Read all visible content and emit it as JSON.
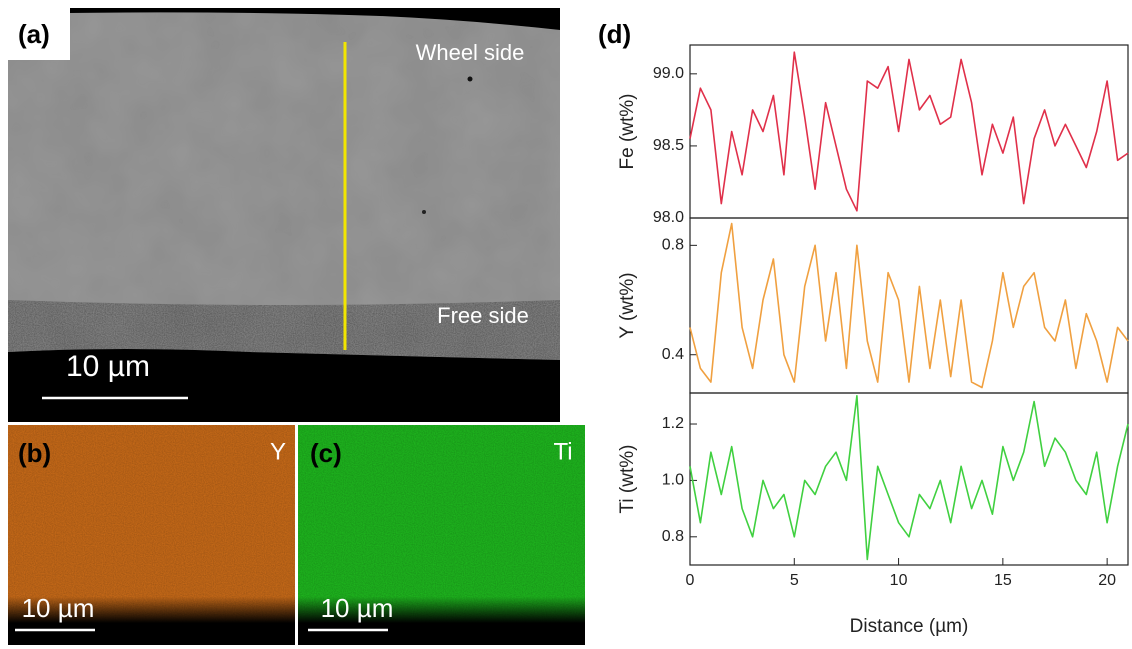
{
  "panels": {
    "a": {
      "label": "(a)",
      "top_label": "Wheel side",
      "bottom_label": "Free side",
      "scale": "10 µm"
    },
    "b": {
      "label": "(b)",
      "element": "Y",
      "scale": "10 µm"
    },
    "c": {
      "label": "(c)",
      "element": "Ti",
      "scale": "10 µm"
    },
    "d": {
      "label": "(d)"
    }
  },
  "chart_data": [
    {
      "type": "line",
      "ylabel": "Fe (wt%)",
      "color": "#e0304a",
      "x": [
        0,
        0.5,
        1,
        1.5,
        2,
        2.5,
        3,
        3.5,
        4,
        4.5,
        5,
        5.5,
        6,
        6.5,
        7,
        7.5,
        8,
        8.5,
        9,
        9.5,
        10,
        10.5,
        11,
        11.5,
        12,
        12.5,
        13,
        13.5,
        14,
        14.5,
        15,
        15.5,
        16,
        16.5,
        17,
        17.5,
        18,
        18.5,
        19,
        19.5,
        20,
        20.5,
        21
      ],
      "values": [
        98.55,
        98.9,
        98.75,
        98.1,
        98.6,
        98.3,
        98.75,
        98.6,
        98.85,
        98.3,
        99.15,
        98.7,
        98.2,
        98.8,
        98.5,
        98.2,
        98.05,
        98.95,
        98.9,
        99.05,
        98.6,
        99.1,
        98.75,
        98.85,
        98.65,
        98.7,
        99.1,
        98.8,
        98.3,
        98.65,
        98.45,
        98.7,
        98.1,
        98.55,
        98.75,
        98.5,
        98.65,
        98.5,
        98.35,
        98.6,
        98.95,
        98.4,
        98.45
      ],
      "xlim": [
        0,
        21
      ],
      "ylim": [
        98.0,
        99.2
      ],
      "yticks": [
        {
          "value": 98,
          "label": "98.0"
        },
        98.5,
        {
          "value": 99,
          "label": "99.0"
        }
      ]
    },
    {
      "type": "line",
      "ylabel": "Y (wt%)",
      "color": "#f0a040",
      "x": [
        0,
        0.5,
        1,
        1.5,
        2,
        2.5,
        3,
        3.5,
        4,
        4.5,
        5,
        5.5,
        6,
        6.5,
        7,
        7.5,
        8,
        8.5,
        9,
        9.5,
        10,
        10.5,
        11,
        11.5,
        12,
        12.5,
        13,
        13.5,
        14,
        14.5,
        15,
        15.5,
        16,
        16.5,
        17,
        17.5,
        18,
        18.5,
        19,
        19.5,
        20,
        20.5,
        21
      ],
      "values": [
        0.5,
        0.35,
        0.3,
        0.7,
        0.88,
        0.5,
        0.35,
        0.6,
        0.75,
        0.4,
        0.3,
        0.65,
        0.8,
        0.45,
        0.7,
        0.35,
        0.8,
        0.45,
        0.3,
        0.7,
        0.6,
        0.3,
        0.65,
        0.35,
        0.6,
        0.32,
        0.6,
        0.3,
        0.28,
        0.45,
        0.7,
        0.5,
        0.65,
        0.7,
        0.5,
        0.45,
        0.6,
        0.35,
        0.55,
        0.45,
        0.3,
        0.5,
        0.45
      ],
      "xlim": [
        0,
        21
      ],
      "ylim": [
        0.26,
        0.9
      ],
      "yticks": [
        0.4,
        0.8
      ]
    },
    {
      "type": "line",
      "ylabel": "Ti (wt%)",
      "xlabel": "Distance (µm)",
      "color": "#40d040",
      "x": [
        0,
        0.5,
        1,
        1.5,
        2,
        2.5,
        3,
        3.5,
        4,
        4.5,
        5,
        5.5,
        6,
        6.5,
        7,
        7.5,
        8,
        8.5,
        9,
        9.5,
        10,
        10.5,
        11,
        11.5,
        12,
        12.5,
        13,
        13.5,
        14,
        14.5,
        15,
        15.5,
        16,
        16.5,
        17,
        17.5,
        18,
        18.5,
        19,
        19.5,
        20,
        20.5,
        21
      ],
      "values": [
        1.05,
        0.85,
        1.1,
        0.95,
        1.12,
        0.9,
        0.8,
        1.0,
        0.9,
        0.95,
        0.8,
        1.0,
        0.95,
        1.05,
        1.1,
        1.0,
        1.3,
        0.72,
        1.05,
        0.95,
        0.85,
        0.8,
        0.95,
        0.9,
        1.0,
        0.85,
        1.05,
        0.9,
        1.0,
        0.88,
        1.12,
        1.0,
        1.1,
        1.28,
        1.05,
        1.15,
        1.1,
        1.0,
        0.95,
        1.1,
        0.85,
        1.05,
        1.2
      ],
      "xlim": [
        0,
        21
      ],
      "ylim": [
        0.7,
        1.31
      ],
      "yticks": [
        0.8,
        {
          "value": 1,
          "label": "1.0"
        },
        1.2
      ],
      "xticks": [
        0,
        5,
        10,
        15,
        20
      ]
    }
  ]
}
